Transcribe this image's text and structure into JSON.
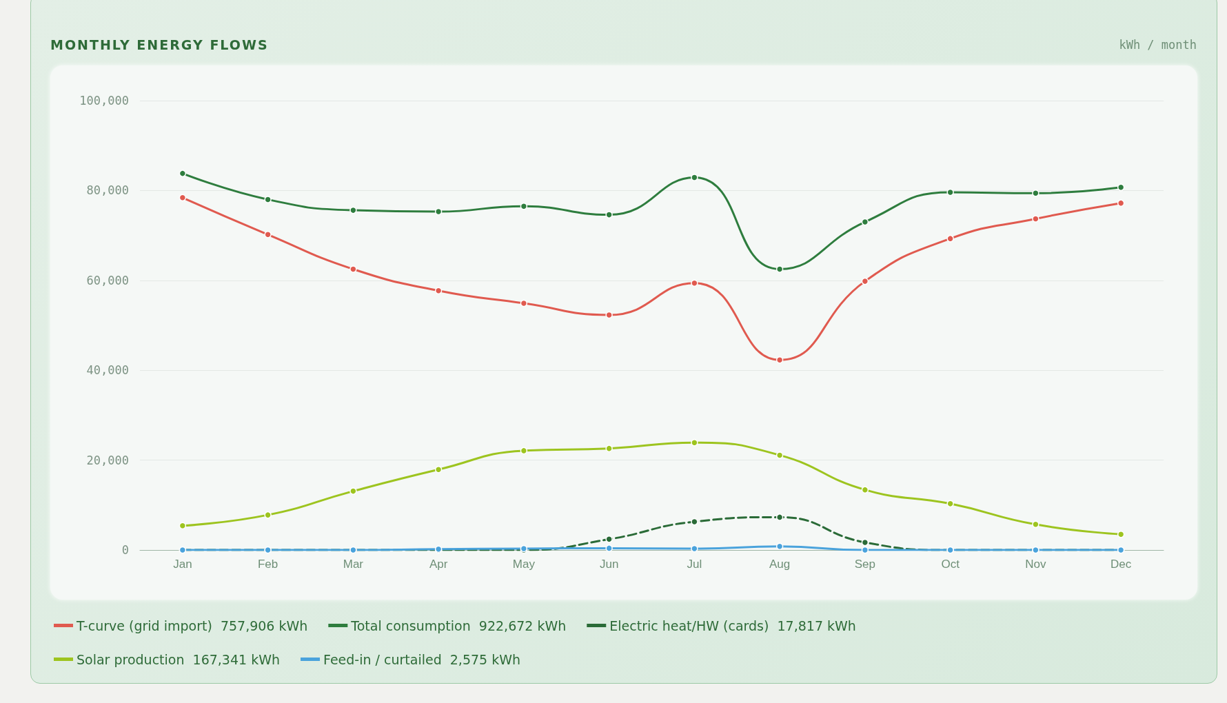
{
  "chart_data": {
    "type": "line",
    "title": "MONTHLY ENERGY FLOWS",
    "subtitle": "kWh / month",
    "categories": [
      "Jan",
      "Feb",
      "Mar",
      "Apr",
      "May",
      "Jun",
      "Jul",
      "Aug",
      "Sep",
      "Oct",
      "Nov",
      "Dec"
    ],
    "series": [
      {
        "name": "T-curve (grid import)  757,906 kWh",
        "color": "#e05a4f",
        "values": [
          78400,
          70200,
          62500,
          57700,
          54900,
          52300,
          59400,
          42300,
          59800,
          69300,
          73700,
          77200
        ]
      },
      {
        "name": "Total consumption  922,672 kWh",
        "color": "#2e7d3e",
        "values": [
          83800,
          78000,
          75600,
          75300,
          76500,
          74600,
          82900,
          62500,
          73000,
          79600,
          79400,
          80700
        ]
      },
      {
        "name": "Electric heat/HW (cards)  17,817 kWh",
        "color": "#2a6b37",
        "line_style": "dashed",
        "values": [
          0,
          0,
          0,
          0,
          0,
          2400,
          6300,
          7300,
          1700,
          0,
          0,
          0
        ]
      },
      {
        "name": "Solar production  167,341 kWh",
        "color": "#9dc41f",
        "values": [
          5400,
          7800,
          13100,
          17900,
          22100,
          22600,
          23900,
          21100,
          13400,
          10300,
          5700,
          3500
        ]
      },
      {
        "name": "Feed-in / curtailed  2,575 kWh",
        "color": "#4aa3dc",
        "values": [
          0,
          0,
          0,
          200,
          300,
          400,
          300,
          800,
          0,
          0,
          0,
          0
        ]
      }
    ],
    "ylim": [
      0,
      100000
    ],
    "yticks": [
      0,
      {
        "value": 20000,
        "label": "20,000"
      },
      {
        "value": 40000,
        "label": "40,000"
      },
      {
        "value": 60000,
        "label": "60,000"
      },
      {
        "value": 80000,
        "label": "80,000"
      },
      {
        "value": 100000,
        "label": "100,000"
      }
    ],
    "grid": "y",
    "legend": "bottom",
    "marker": "circle",
    "line_style": "solid"
  }
}
